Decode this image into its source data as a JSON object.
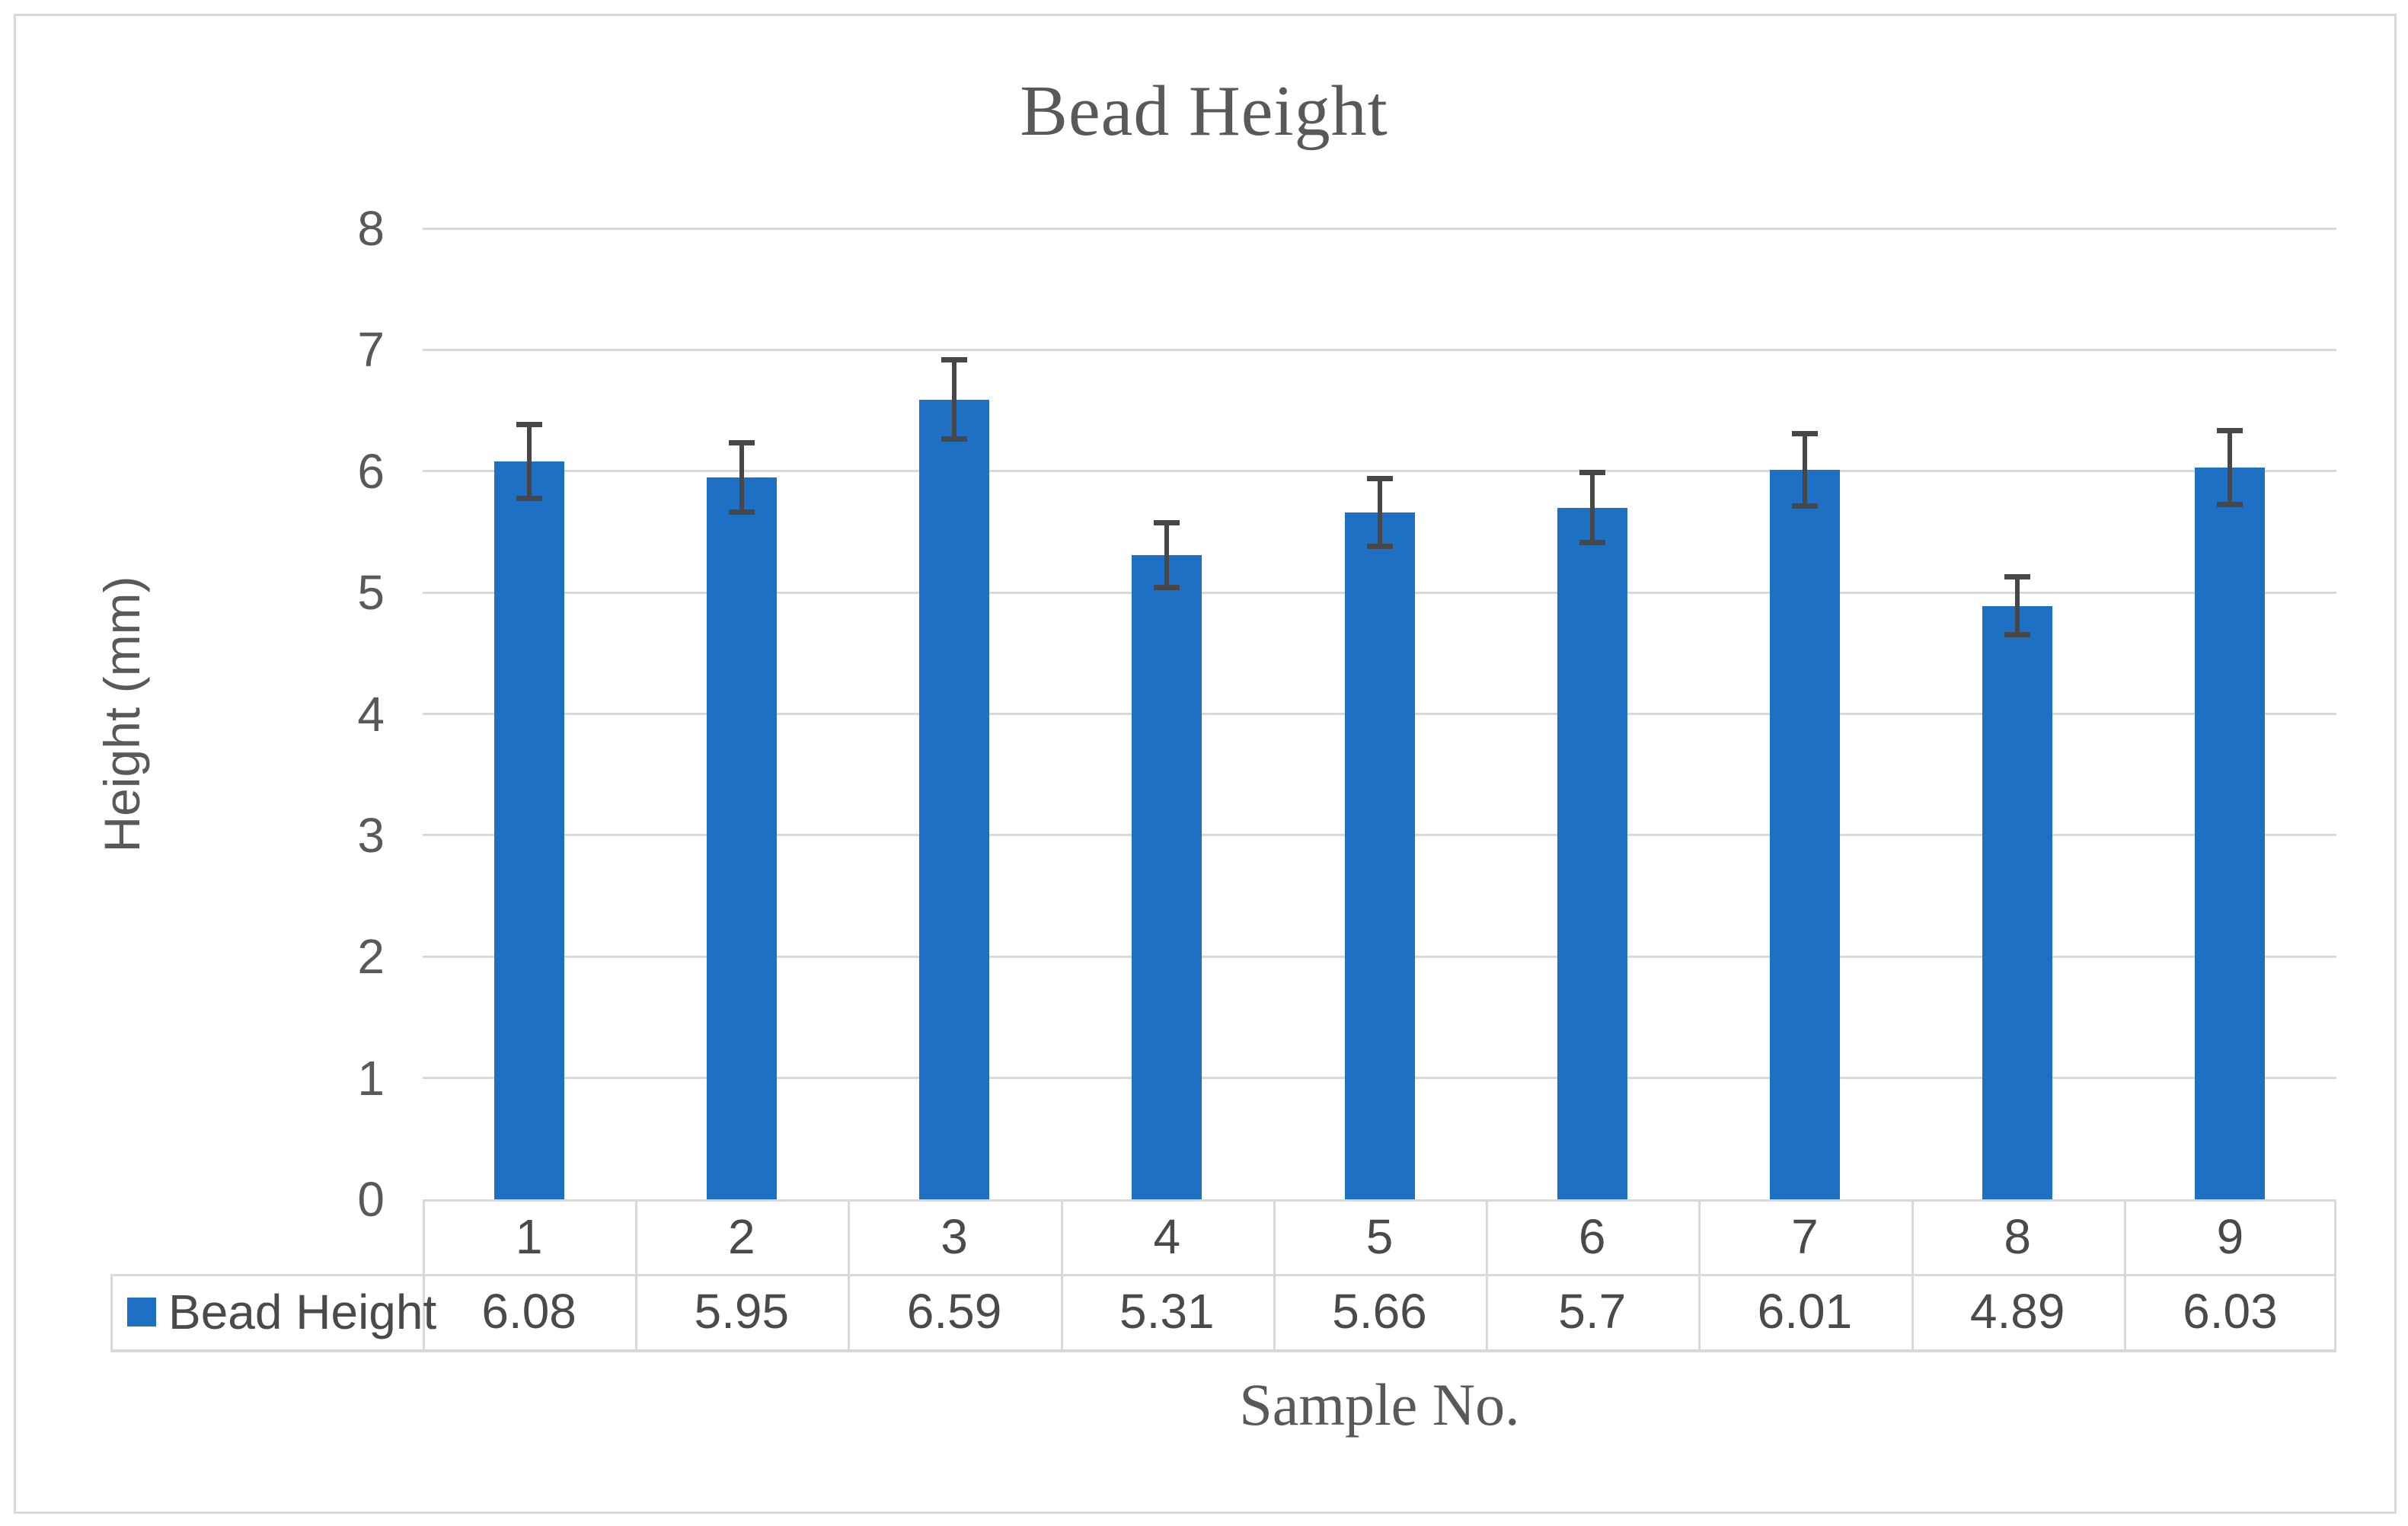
{
  "title": "Bead Height",
  "y_axis": {
    "label": "Height (mm)"
  },
  "x_axis": {
    "label": "Sample No."
  },
  "legend": {
    "series_label": "Bead Height"
  },
  "colors": {
    "bar": "#1e70c5",
    "gridline": "#d9d9d9",
    "table_border": "#d9d9d9",
    "error_bar": "#474747",
    "axis_text": "#595959",
    "table_text": "#4a4a4a"
  },
  "table": {
    "row_header": "Bead Height",
    "categories": [
      "1",
      "2",
      "3",
      "4",
      "5",
      "6",
      "7",
      "8",
      "9"
    ],
    "values": [
      "6.08",
      "5.95",
      "6.59",
      "5.31",
      "5.66",
      "5.7",
      "6.01",
      "4.89",
      "6.03"
    ]
  },
  "chart_data": {
    "type": "bar",
    "title": "Bead Height",
    "xlabel": "Sample No.",
    "ylabel": "Height (mm)",
    "categories": [
      "1",
      "2",
      "3",
      "4",
      "5",
      "6",
      "7",
      "8",
      "9"
    ],
    "series": [
      {
        "name": "Bead Height",
        "values": [
          6.08,
          5.95,
          6.59,
          5.31,
          5.66,
          5.7,
          6.01,
          4.89,
          6.03
        ],
        "error_bars_estimated": [
          0.31,
          0.29,
          0.33,
          0.27,
          0.28,
          0.29,
          0.3,
          0.24,
          0.31
        ],
        "color": "#1e70c5"
      }
    ],
    "ylim": [
      0,
      8
    ],
    "ytick_labels": [
      "0",
      "1",
      "2",
      "3",
      "4",
      "5",
      "6",
      "7",
      "8"
    ],
    "grid": true,
    "legend_position": "data-table-left",
    "data_table_shown": true
  }
}
